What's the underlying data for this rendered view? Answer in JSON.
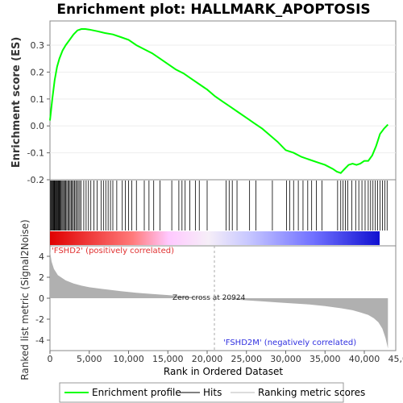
{
  "chart_data": {
    "type": "line",
    "title": "Enrichment plot: HALLMARK_APOPTOSIS",
    "es_panel": {
      "ylabel": "Enrichment score (ES)",
      "ylim": [
        -0.2,
        0.39
      ],
      "yticks": [
        "-0.2",
        "-0.1",
        "0.0",
        "0.1",
        "0.2",
        "0.3"
      ],
      "ytick_values": [
        -0.2,
        -0.1,
        0.0,
        0.1,
        0.2,
        0.3
      ],
      "series": [
        {
          "name": "Enrichment profile",
          "color": "#00ff00",
          "x": [
            0,
            300,
            600,
            900,
            1200,
            1600,
            2000,
            2500,
            3000,
            3500,
            4000,
            4500,
            5000,
            6000,
            7000,
            8000,
            9000,
            10000,
            11000,
            12000,
            13000,
            14000,
            15000,
            16000,
            17000,
            18000,
            19000,
            20000,
            21000,
            22000,
            23000,
            24000,
            25000,
            26000,
            27000,
            28000,
            29000,
            30000,
            31000,
            32000,
            33000,
            34000,
            35000,
            36000,
            36500,
            37000,
            37500,
            38000,
            38500,
            39000,
            39500,
            40000,
            40500,
            41000,
            41500,
            42000,
            42500,
            43000
          ],
          "y": [
            0.02,
            0.1,
            0.17,
            0.22,
            0.25,
            0.28,
            0.3,
            0.32,
            0.34,
            0.355,
            0.36,
            0.36,
            0.358,
            0.352,
            0.345,
            0.34,
            0.33,
            0.32,
            0.3,
            0.285,
            0.27,
            0.25,
            0.23,
            0.21,
            0.195,
            0.175,
            0.155,
            0.135,
            0.11,
            0.09,
            0.07,
            0.05,
            0.03,
            0.01,
            -0.01,
            -0.035,
            -0.06,
            -0.09,
            -0.1,
            -0.115,
            -0.125,
            -0.135,
            -0.145,
            -0.16,
            -0.17,
            -0.175,
            -0.16,
            -0.145,
            -0.14,
            -0.145,
            -0.14,
            -0.13,
            -0.13,
            -0.11,
            -0.075,
            -0.03,
            -0.01,
            0.005
          ]
        }
      ]
    },
    "hits": {
      "name": "Hits",
      "ranks": [
        80,
        170,
        260,
        350,
        440,
        520,
        600,
        690,
        780,
        860,
        950,
        1040,
        1130,
        1210,
        1300,
        1400,
        1520,
        1640,
        1760,
        1880,
        2000,
        2140,
        2280,
        2420,
        2560,
        2700,
        2840,
        2980,
        3130,
        3280,
        3430,
        3600,
        3780,
        3960,
        4300,
        4600,
        4900,
        5200,
        5600,
        6000,
        6500,
        6800,
        7100,
        7400,
        7700,
        8000,
        8500,
        9200,
        9600,
        10000,
        10400,
        11000,
        12000,
        12600,
        13200,
        14000,
        15500,
        16400,
        16800,
        17200,
        17800,
        18500,
        19000,
        20000,
        22400,
        22800,
        23200,
        23800,
        25400,
        26200,
        28300,
        30100,
        30500,
        31000,
        31600,
        32200,
        32800,
        33300,
        33900,
        34600,
        36600,
        37000,
        37300,
        37600,
        37900,
        38400,
        38900,
        39300,
        39700,
        40100,
        40500,
        40800,
        41100,
        41400,
        41700,
        42000,
        42300,
        42600,
        42900
      ]
    },
    "rank_metric_panel": {
      "ylabel": "Ranked list metric (Signal2Noise)",
      "ylim": [
        -5,
        5
      ],
      "yticks": [
        "4",
        "2",
        "0",
        "-2",
        "-4"
      ],
      "ytick_values": [
        4,
        2,
        0,
        -2,
        -4
      ],
      "series": [
        {
          "name": "Ranking metric scores",
          "x": [
            0,
            200,
            500,
            1000,
            2000,
            3000,
            4000,
            5000,
            7000,
            9000,
            11000,
            13000,
            15000,
            17000,
            19000,
            20924,
            23000,
            25000,
            27000,
            29000,
            31000,
            33000,
            35000,
            37000,
            38500,
            39500,
            40500,
            41200,
            41800,
            42300,
            42700,
            43000
          ],
          "y": [
            4.5,
            3.5,
            2.8,
            2.2,
            1.7,
            1.4,
            1.2,
            1.05,
            0.85,
            0.68,
            0.52,
            0.4,
            0.3,
            0.18,
            0.08,
            0.0,
            -0.1,
            -0.2,
            -0.3,
            -0.4,
            -0.5,
            -0.6,
            -0.75,
            -0.95,
            -1.15,
            -1.35,
            -1.6,
            -1.9,
            -2.3,
            -2.9,
            -3.8,
            -4.8
          ]
        }
      ],
      "zero_cross_label": "Zero cross at 20924",
      "zero_cross_rank": 20924,
      "pos_label": "'FSHD2' (positively correlated)",
      "neg_label": "'FSHD2M' (negatively correlated)"
    },
    "xaxis": {
      "label": "Rank in Ordered Dataset",
      "xlim": [
        0,
        44000
      ],
      "ticks": [
        "0",
        "5,000",
        "10,000",
        "15,000",
        "20,000",
        "25,000",
        "30,000",
        "35,000",
        "40,000",
        "45,000"
      ],
      "tick_values": [
        0,
        5000,
        10000,
        15000,
        20000,
        25000,
        30000,
        35000,
        40000,
        45000
      ]
    },
    "legend": {
      "placement": "bottom",
      "entries": [
        {
          "label": "Enrichment profile",
          "color": "#00ff00"
        },
        {
          "label": "Hits",
          "color": "#000000"
        },
        {
          "label": "Ranking metric scores",
          "color": "#bbbbbb"
        }
      ]
    },
    "colors": {
      "profile": "#00ff00",
      "metric_fill": "#b0b0b0",
      "pos_text": "#e03030",
      "neg_text": "#3030e0"
    }
  }
}
